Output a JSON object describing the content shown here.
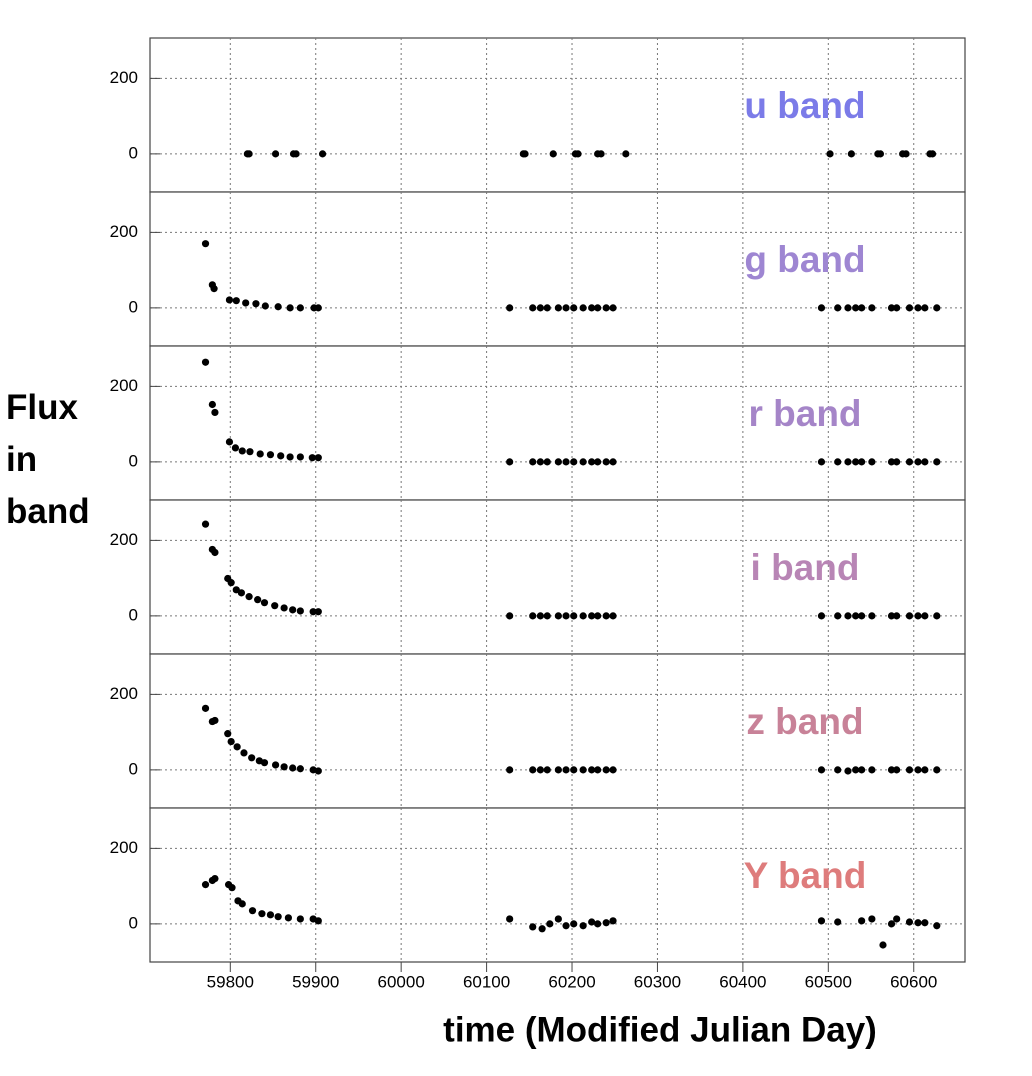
{
  "chart_data": [
    {
      "type": "scatter",
      "title": "u band",
      "title_color": "#7b7be8",
      "color": "#000000",
      "ylabel": "Flux in band",
      "x": [
        59820,
        59822,
        59853,
        59874,
        59877,
        59908,
        60143,
        60145,
        60178,
        60204,
        60207,
        60230,
        60234,
        60263,
        60502,
        60527,
        60558,
        60561,
        60587,
        60591,
        60619,
        60622
      ],
      "values": [
        0,
        0,
        0,
        0,
        0,
        0,
        0,
        0,
        0,
        0,
        0,
        0,
        0,
        0,
        0,
        0,
        0,
        0,
        0,
        0,
        0,
        0
      ],
      "xlim": [
        59706,
        60660
      ],
      "xticks": [
        59800,
        59900,
        60000,
        60100,
        60200,
        60300,
        60400,
        60500,
        60600
      ],
      "ylim": [
        -101,
        307
      ],
      "yticks": [
        0,
        200
      ],
      "grid": true
    },
    {
      "type": "scatter",
      "title": "g band",
      "title_color": "#9e86d2",
      "color": "#000000",
      "x": [
        59771,
        59779,
        59781,
        59799,
        59807,
        59818,
        59830,
        59841,
        59856,
        59870,
        59882,
        59898,
        59903,
        60127,
        60154,
        60163,
        60171,
        60184,
        60193,
        60202,
        60213,
        60223,
        60230,
        60240,
        60248,
        60492,
        60511,
        60523,
        60532,
        60539,
        60551,
        60574,
        60580,
        60595,
        60605,
        60613,
        60627
      ],
      "values": [
        170,
        61,
        51,
        21,
        19,
        13,
        11,
        5,
        3,
        0,
        0,
        0,
        0,
        0,
        0,
        0,
        0,
        0,
        0,
        0,
        0,
        0,
        0,
        0,
        0,
        0,
        0,
        0,
        0,
        0,
        0,
        0,
        0,
        0,
        0,
        0,
        0
      ],
      "xlim": [
        59706,
        60660
      ],
      "xticks": [
        59800,
        59900,
        60000,
        60100,
        60200,
        60300,
        60400,
        60500,
        60600
      ],
      "ylim": [
        -101,
        307
      ],
      "yticks": [
        0,
        200
      ],
      "grid": true
    },
    {
      "type": "scatter",
      "title": "r band",
      "title_color": "#a585c8",
      "color": "#000000",
      "x": [
        59771,
        59779,
        59782,
        59799,
        59806,
        59814,
        59823,
        59835,
        59847,
        59859,
        59870,
        59882,
        59896,
        59903,
        60127,
        60154,
        60163,
        60171,
        60184,
        60193,
        60202,
        60213,
        60223,
        60230,
        60240,
        60248,
        60492,
        60511,
        60523,
        60532,
        60539,
        60551,
        60574,
        60580,
        60595,
        60605,
        60613,
        60627
      ],
      "values": [
        264,
        152,
        131,
        53,
        37,
        29,
        27,
        21,
        19,
        16,
        13,
        13,
        11,
        11,
        0,
        0,
        0,
        0,
        0,
        0,
        0,
        0,
        0,
        0,
        0,
        0,
        0,
        0,
        0,
        0,
        0,
        0,
        0,
        0,
        0,
        0,
        0,
        0
      ],
      "xlim": [
        59706,
        60660
      ],
      "xticks": [
        59800,
        59900,
        60000,
        60100,
        60200,
        60300,
        60400,
        60500,
        60600
      ],
      "ylim": [
        -101,
        307
      ],
      "yticks": [
        0,
        200
      ],
      "grid": true
    },
    {
      "type": "scatter",
      "title": "i band",
      "title_color": "#b885b5",
      "color": "#000000",
      "x": [
        59771,
        59779,
        59782,
        59797,
        59801,
        59807,
        59813,
        59822,
        59832,
        59840,
        59852,
        59863,
        59873,
        59882,
        59897,
        59903,
        60127,
        60154,
        60163,
        60171,
        60184,
        60193,
        60202,
        60213,
        60223,
        60230,
        60240,
        60248,
        60492,
        60511,
        60523,
        60532,
        60539,
        60551,
        60574,
        60580,
        60595,
        60605,
        60613,
        60627
      ],
      "values": [
        243,
        176,
        168,
        99,
        88,
        69,
        61,
        51,
        43,
        35,
        27,
        21,
        16,
        13,
        11,
        11,
        0,
        0,
        0,
        0,
        0,
        0,
        0,
        0,
        0,
        0,
        0,
        0,
        0,
        0,
        0,
        0,
        0,
        0,
        0,
        0,
        0,
        0,
        0,
        0
      ],
      "xlim": [
        59706,
        60660
      ],
      "xticks": [
        59800,
        59900,
        60000,
        60100,
        60200,
        60300,
        60400,
        60500,
        60600
      ],
      "ylim": [
        -101,
        307
      ],
      "yticks": [
        0,
        200
      ],
      "grid": true
    },
    {
      "type": "scatter",
      "title": "z band",
      "title_color": "#c88298",
      "color": "#000000",
      "x": [
        59771,
        59779,
        59782,
        59797,
        59801,
        59808,
        59816,
        59825,
        59834,
        59840,
        59853,
        59863,
        59873,
        59882,
        59897,
        59903,
        60127,
        60154,
        60163,
        60171,
        60184,
        60193,
        60202,
        60213,
        60223,
        60230,
        60240,
        60248,
        60492,
        60511,
        60523,
        60532,
        60539,
        60551,
        60574,
        60580,
        60595,
        60605,
        60613,
        60627
      ],
      "values": [
        163,
        128,
        131,
        96,
        75,
        61,
        45,
        32,
        24,
        19,
        13,
        8,
        5,
        3,
        0,
        -3,
        0,
        0,
        0,
        0,
        0,
        0,
        0,
        0,
        0,
        0,
        0,
        0,
        0,
        0,
        -3,
        0,
        0,
        0,
        0,
        0,
        0,
        0,
        0,
        0
      ],
      "xlim": [
        59706,
        60660
      ],
      "xticks": [
        59800,
        59900,
        60000,
        60100,
        60200,
        60300,
        60400,
        60500,
        60600
      ],
      "ylim": [
        -101,
        307
      ],
      "yticks": [
        0,
        200
      ],
      "grid": true
    },
    {
      "type": "scatter",
      "title": "Y band",
      "title_color": "#de7c7c",
      "color": "#000000",
      "xlabel": "time (Modified Julian Day)",
      "x": [
        59771,
        59779,
        59782,
        59798,
        59802,
        59809,
        59814,
        59826,
        59837,
        59847,
        59856,
        59868,
        59882,
        59897,
        59903,
        60127,
        60154,
        60165,
        60174,
        60184,
        60193,
        60202,
        60213,
        60223,
        60230,
        60240,
        60248,
        60492,
        60511,
        60539,
        60551,
        60564,
        60574,
        60580,
        60595,
        60605,
        60613,
        60627
      ],
      "values": [
        104,
        115,
        120,
        104,
        96,
        61,
        53,
        35,
        27,
        24,
        19,
        16,
        13,
        13,
        8,
        13,
        -8,
        -13,
        0,
        13,
        -5,
        0,
        -5,
        5,
        0,
        3,
        8,
        8,
        5,
        8,
        13,
        -56,
        0,
        13,
        5,
        3,
        3,
        -5
      ],
      "xlim": [
        59706,
        60660
      ],
      "xticks": [
        59800,
        59900,
        60000,
        60100,
        60200,
        60300,
        60400,
        60500,
        60600
      ],
      "ylim": [
        -101,
        307
      ],
      "yticks": [
        0,
        200
      ],
      "grid": true
    }
  ]
}
